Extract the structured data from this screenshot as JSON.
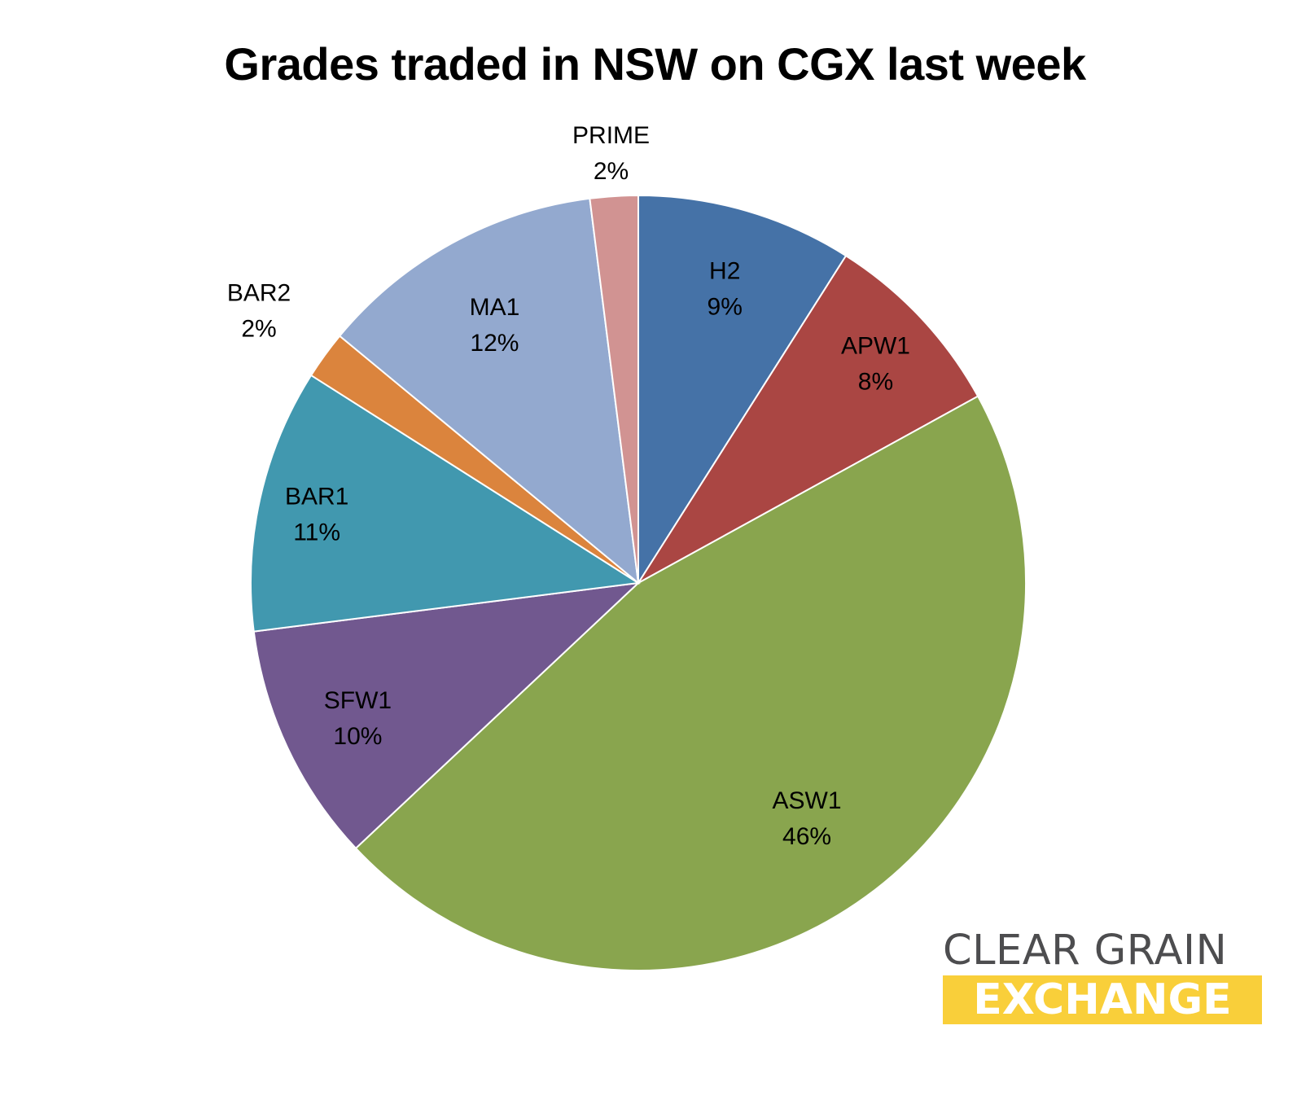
{
  "chart_data": {
    "type": "pie",
    "title": "Grades traded in NSW on CGX last week",
    "start_angle": "12 o'clock",
    "direction": "clockwise",
    "slices": [
      {
        "label": "H2",
        "value": 9,
        "display": "9%",
        "color": "#4572a7"
      },
      {
        "label": "APW1",
        "value": 8,
        "display": "8%",
        "color": "#aa4643"
      },
      {
        "label": "ASW1",
        "value": 46,
        "display": "46%",
        "color": "#89a54e"
      },
      {
        "label": "SFW1",
        "value": 10,
        "display": "10%",
        "color": "#71588f"
      },
      {
        "label": "BAR1",
        "value": 11,
        "display": "11%",
        "color": "#4198af"
      },
      {
        "label": "BAR2",
        "value": 2,
        "display": "2%",
        "color": "#db843d"
      },
      {
        "label": "MA1",
        "value": 12,
        "display": "12%",
        "color": "#93a9cf"
      },
      {
        "label": "PRIME",
        "value": 2,
        "display": "2%",
        "color": "#d19392"
      }
    ]
  },
  "logo": {
    "line1": "CLEAR GRAIN",
    "line2": "EXCHANGE"
  }
}
